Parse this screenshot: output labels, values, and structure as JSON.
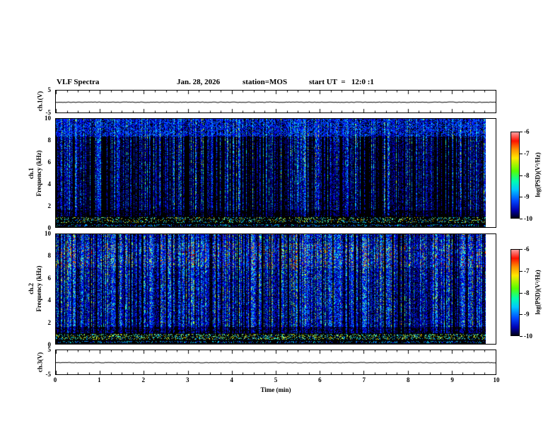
{
  "header": {
    "title": "VLF Spectra",
    "date": "Jan. 28, 2026",
    "station": "station=MOS",
    "start_ut": "start UT  =   12:0 :1"
  },
  "xaxis": {
    "label": "Time (min)",
    "ticks": [
      "0",
      "1",
      "2",
      "3",
      "4",
      "5",
      "6",
      "7",
      "8",
      "9",
      "10"
    ]
  },
  "colors": {
    "background": "#ffffff",
    "spectrogram_background": "#000000",
    "frame": "#000000",
    "colormap": [
      "#000080",
      "#0000ff",
      "#00ffff",
      "#00ff00",
      "#ffff00",
      "#ff0000",
      "#ff9e9e"
    ]
  },
  "chart_data": [
    {
      "type": "line",
      "name_label": "ch.1(V)",
      "ylabel": "ch.1(V)",
      "xlim": [
        0,
        10
      ],
      "ylim": [
        -5,
        5
      ],
      "yticks": [
        "5",
        "-5"
      ],
      "summary": "flat voltage trace at ~0 V across the full 10 min record",
      "render": {
        "seed": 41,
        "jitter": 0.9
      }
    },
    {
      "type": "heatmap",
      "name_label": "ch.1",
      "ylabel": "Frequency (kHz)",
      "xlim": [
        0,
        10
      ],
      "ylim": [
        0,
        10
      ],
      "yticks": [
        "0",
        "2",
        "4",
        "6",
        "8",
        "10"
      ],
      "x_extent_min": [
        0,
        9.75
      ],
      "colorbar": {
        "label": "log(PSD)(V²/Hz)",
        "ticks": [
          "-6",
          "-7",
          "-8",
          "-9",
          "-10"
        ],
        "range": [
          -10,
          -6
        ]
      },
      "summary": "sparse impulsive broadband vertical streaks (sferics) ~1.6-10 kHz on black background; dense faint blue speckle above ~8.4 kHz; dotted band at 0.5-0.9 kHz",
      "render": {
        "seed": 1234,
        "skew": 2.6,
        "gain": 0.85,
        "hotProb": 0.06,
        "mid": 0.36,
        "slope": 0.014,
        "speckle": 0.22,
        "topFill": true
      }
    },
    {
      "type": "heatmap",
      "name_label": "ch.2",
      "ylabel": "Frequency (kHz)",
      "xlim": [
        0,
        10
      ],
      "ylim": [
        0,
        10
      ],
      "yticks": [
        "0",
        "2",
        "4",
        "6",
        "8",
        "10"
      ],
      "x_extent_min": [
        0,
        9.75
      ],
      "colorbar": {
        "label": "log(PSD)(V²/Hz)",
        "ticks": [
          "-6",
          "-7",
          "-8",
          "-9",
          "-10"
        ],
        "range": [
          -10,
          -6
        ]
      },
      "summary": "dense cyan/green broadband streaks ~1.6-9.5 kHz; brighter band 7-9 kHz; dotted band at 0.5-0.9 kHz",
      "render": {
        "seed": 777,
        "skew": 1.35,
        "gain": 0.95,
        "hotProb": 0.1,
        "mid": 0.42,
        "slope": 0.012,
        "speckle": 0.3,
        "band": [
          7.0,
          9.2,
          0.72
        ],
        "topFill": false
      }
    },
    {
      "type": "line",
      "name_label": "ch.3(V)",
      "ylabel": "ch.3(V)",
      "xlim": [
        0,
        10
      ],
      "ylim": [
        -5,
        5
      ],
      "yticks": [
        "5",
        "-5"
      ],
      "summary": "flat voltage trace at ~0 V across the full 10 min record",
      "render": {
        "seed": 97,
        "jitter": 0.9
      }
    }
  ]
}
